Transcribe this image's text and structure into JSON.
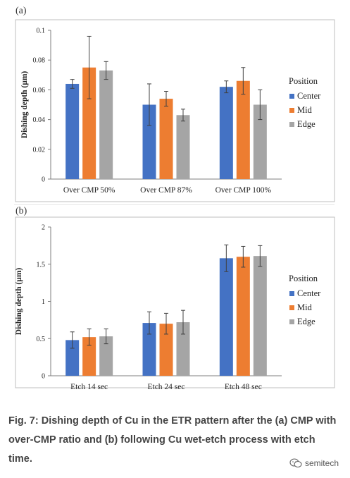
{
  "chart_data": [
    {
      "panel_label": "(a)",
      "type": "bar",
      "ylabel": "Dishing depth (µm)",
      "ylim": [
        0,
        0.1
      ],
      "yticks": [
        "0",
        "0.02",
        "0.04",
        "0.06",
        "0.08",
        "0.1"
      ],
      "categories": [
        "Over CMP 50%",
        "Over CMP 87%",
        "Over CMP 100%"
      ],
      "legend_title": "Position",
      "legend_position": "right",
      "grid": false,
      "series": [
        {
          "name": "Center",
          "color": "#4472c4",
          "values": [
            0.064,
            0.05,
            0.062
          ],
          "errors": [
            0.003,
            0.014,
            0.004
          ]
        },
        {
          "name": "Mid",
          "color": "#ed7d31",
          "values": [
            0.075,
            0.054,
            0.066
          ],
          "errors": [
            0.021,
            0.005,
            0.009
          ]
        },
        {
          "name": "Edge",
          "color": "#a5a5a5",
          "values": [
            0.073,
            0.043,
            0.05
          ],
          "errors": [
            0.006,
            0.004,
            0.01
          ]
        }
      ]
    },
    {
      "panel_label": "(b)",
      "type": "bar",
      "ylabel": "Dishing depth (µm)",
      "ylim": [
        0,
        2
      ],
      "yticks": [
        "0",
        "0.5",
        "1",
        "1.5",
        "2"
      ],
      "categories": [
        "Etch 14 sec",
        "Etch 24 sec",
        "Etch 48 sec"
      ],
      "legend_title": "Position",
      "legend_position": "right",
      "grid": false,
      "series": [
        {
          "name": "Center",
          "color": "#4472c4",
          "values": [
            0.48,
            0.71,
            1.58
          ],
          "errors": [
            0.11,
            0.15,
            0.18
          ]
        },
        {
          "name": "Mid",
          "color": "#ed7d31",
          "values": [
            0.52,
            0.7,
            1.6
          ],
          "errors": [
            0.11,
            0.14,
            0.14
          ]
        },
        {
          "name": "Edge",
          "color": "#a5a5a5",
          "values": [
            0.53,
            0.72,
            1.61
          ],
          "errors": [
            0.1,
            0.16,
            0.14
          ]
        }
      ]
    }
  ],
  "caption": "Fig. 7: Dishing depth of Cu in the ETR pattern after the (a) CMP with over-CMP ratio and (b) following Cu wet-etch process with etch time.",
  "watermark": {
    "text": "semitech",
    "icon": "wechat-icon"
  }
}
